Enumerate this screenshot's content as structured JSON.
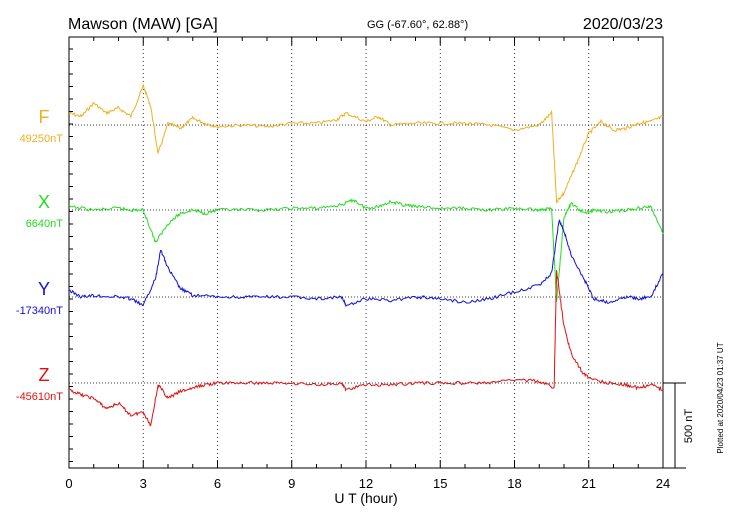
{
  "header": {
    "station": "Mawson (MAW)  [GA]",
    "coords": "GG (-67.60°,  62.88°)",
    "date": "2020/03/23"
  },
  "footer": {
    "plotted": "Plotted at 2020/04/23 01:37 UT"
  },
  "chart_data": {
    "type": "line",
    "title": "Mawson (MAW)  [GA]",
    "xlabel": "U T (hour)",
    "xlim": [
      0,
      24
    ],
    "xticks": [
      0,
      3,
      6,
      9,
      12,
      15,
      18,
      21,
      24
    ],
    "xtick_labels": [
      "0",
      "3",
      "6",
      "9",
      "12",
      "15",
      "18",
      "21",
      "24"
    ],
    "grid": "dotted baseline per component",
    "scale_bar": {
      "label": "500 nT",
      "value_nT": 500
    },
    "series": [
      {
        "name": "F",
        "baseline_label": "49250nT",
        "baseline_nT": 49250,
        "color": "#f0b020",
        "points": [
          [
            0,
            49320
          ],
          [
            0.5,
            49300
          ],
          [
            1,
            49380
          ],
          [
            1.5,
            49320
          ],
          [
            2,
            49350
          ],
          [
            2.5,
            49300
          ],
          [
            3,
            49480
          ],
          [
            3.3,
            49360
          ],
          [
            3.6,
            49080
          ],
          [
            4,
            49260
          ],
          [
            4.5,
            49230
          ],
          [
            5,
            49290
          ],
          [
            5.5,
            49260
          ],
          [
            6,
            49240
          ],
          [
            7,
            49250
          ],
          [
            8,
            49240
          ],
          [
            9,
            49260
          ],
          [
            10,
            49260
          ],
          [
            10.8,
            49280
          ],
          [
            11.2,
            49320
          ],
          [
            12,
            49270
          ],
          [
            12.5,
            49300
          ],
          [
            13,
            49250
          ],
          [
            14,
            49260
          ],
          [
            15,
            49260
          ],
          [
            16,
            49260
          ],
          [
            17,
            49250
          ],
          [
            18,
            49220
          ],
          [
            19,
            49250
          ],
          [
            19.5,
            49320
          ],
          [
            19.7,
            48800
          ],
          [
            20,
            48850
          ],
          [
            20.5,
            49020
          ],
          [
            21,
            49200
          ],
          [
            21.5,
            49270
          ],
          [
            22,
            49220
          ],
          [
            22.5,
            49230
          ],
          [
            23,
            49260
          ],
          [
            23.5,
            49270
          ],
          [
            24,
            49300
          ]
        ]
      },
      {
        "name": "X",
        "baseline_label": "6640nT",
        "baseline_nT": 6640,
        "color": "#22dd22",
        "points": [
          [
            0,
            6660
          ],
          [
            1,
            6640
          ],
          [
            2,
            6650
          ],
          [
            2.5,
            6640
          ],
          [
            3,
            6640
          ],
          [
            3.5,
            6450
          ],
          [
            4,
            6560
          ],
          [
            4.5,
            6620
          ],
          [
            5,
            6640
          ],
          [
            5.5,
            6620
          ],
          [
            6,
            6640
          ],
          [
            7,
            6640
          ],
          [
            8,
            6640
          ],
          [
            9,
            6650
          ],
          [
            10,
            6650
          ],
          [
            11,
            6670
          ],
          [
            11.5,
            6700
          ],
          [
            12,
            6650
          ],
          [
            12.5,
            6660
          ],
          [
            13,
            6690
          ],
          [
            13.5,
            6670
          ],
          [
            14,
            6660
          ],
          [
            15,
            6650
          ],
          [
            16,
            6650
          ],
          [
            17,
            6640
          ],
          [
            18,
            6650
          ],
          [
            19,
            6640
          ],
          [
            19.5,
            6650
          ],
          [
            19.7,
            6100
          ],
          [
            20,
            6600
          ],
          [
            20.3,
            6680
          ],
          [
            20.8,
            6620
          ],
          [
            21.2,
            6640
          ],
          [
            21.8,
            6630
          ],
          [
            22.5,
            6640
          ],
          [
            23,
            6650
          ],
          [
            23.5,
            6660
          ],
          [
            24,
            6500
          ]
        ]
      },
      {
        "name": "Y",
        "baseline_label": "-17340nT",
        "baseline_nT": -17340,
        "color": "#1010e0",
        "points": [
          [
            0,
            -17300
          ],
          [
            0.5,
            -17340
          ],
          [
            1,
            -17330
          ],
          [
            2,
            -17340
          ],
          [
            2.5,
            -17350
          ],
          [
            3,
            -17390
          ],
          [
            3.5,
            -17230
          ],
          [
            3.7,
            -17060
          ],
          [
            4,
            -17170
          ],
          [
            4.5,
            -17290
          ],
          [
            5,
            -17330
          ],
          [
            6,
            -17340
          ],
          [
            7,
            -17340
          ],
          [
            8,
            -17340
          ],
          [
            9,
            -17340
          ],
          [
            10,
            -17350
          ],
          [
            11,
            -17340
          ],
          [
            11.2,
            -17390
          ],
          [
            12,
            -17350
          ],
          [
            13,
            -17360
          ],
          [
            14,
            -17340
          ],
          [
            15,
            -17350
          ],
          [
            16,
            -17370
          ],
          [
            17,
            -17350
          ],
          [
            18,
            -17310
          ],
          [
            19,
            -17270
          ],
          [
            19.5,
            -17200
          ],
          [
            19.8,
            -16890
          ],
          [
            20,
            -16950
          ],
          [
            20.3,
            -17100
          ],
          [
            20.8,
            -17230
          ],
          [
            21.2,
            -17350
          ],
          [
            21.8,
            -17370
          ],
          [
            22.5,
            -17340
          ],
          [
            23,
            -17350
          ],
          [
            23.5,
            -17340
          ],
          [
            24,
            -17200
          ]
        ]
      },
      {
        "name": "Z",
        "baseline_label": "-45610nT",
        "baseline_nT": -45610,
        "color": "#e01010",
        "points": [
          [
            0,
            -45650
          ],
          [
            0.5,
            -45680
          ],
          [
            1,
            -45700
          ],
          [
            1.5,
            -45760
          ],
          [
            2,
            -45730
          ],
          [
            2.5,
            -45800
          ],
          [
            3,
            -45780
          ],
          [
            3.3,
            -45860
          ],
          [
            3.6,
            -45620
          ],
          [
            4,
            -45700
          ],
          [
            4.5,
            -45660
          ],
          [
            5,
            -45640
          ],
          [
            5.5,
            -45620
          ],
          [
            6,
            -45610
          ],
          [
            7,
            -45610
          ],
          [
            8,
            -45610
          ],
          [
            9,
            -45610
          ],
          [
            10,
            -45620
          ],
          [
            11,
            -45610
          ],
          [
            11.2,
            -45650
          ],
          [
            12,
            -45620
          ],
          [
            13,
            -45620
          ],
          [
            14,
            -45610
          ],
          [
            15,
            -45610
          ],
          [
            16,
            -45610
          ],
          [
            17,
            -45610
          ],
          [
            18,
            -45590
          ],
          [
            19,
            -45600
          ],
          [
            19.6,
            -45640
          ],
          [
            19.7,
            -44950
          ],
          [
            20,
            -45280
          ],
          [
            20.3,
            -45440
          ],
          [
            20.8,
            -45560
          ],
          [
            21.2,
            -45590
          ],
          [
            21.8,
            -45610
          ],
          [
            22.5,
            -45620
          ],
          [
            23,
            -45640
          ],
          [
            23.5,
            -45620
          ],
          [
            24,
            -45650
          ]
        ]
      }
    ]
  }
}
